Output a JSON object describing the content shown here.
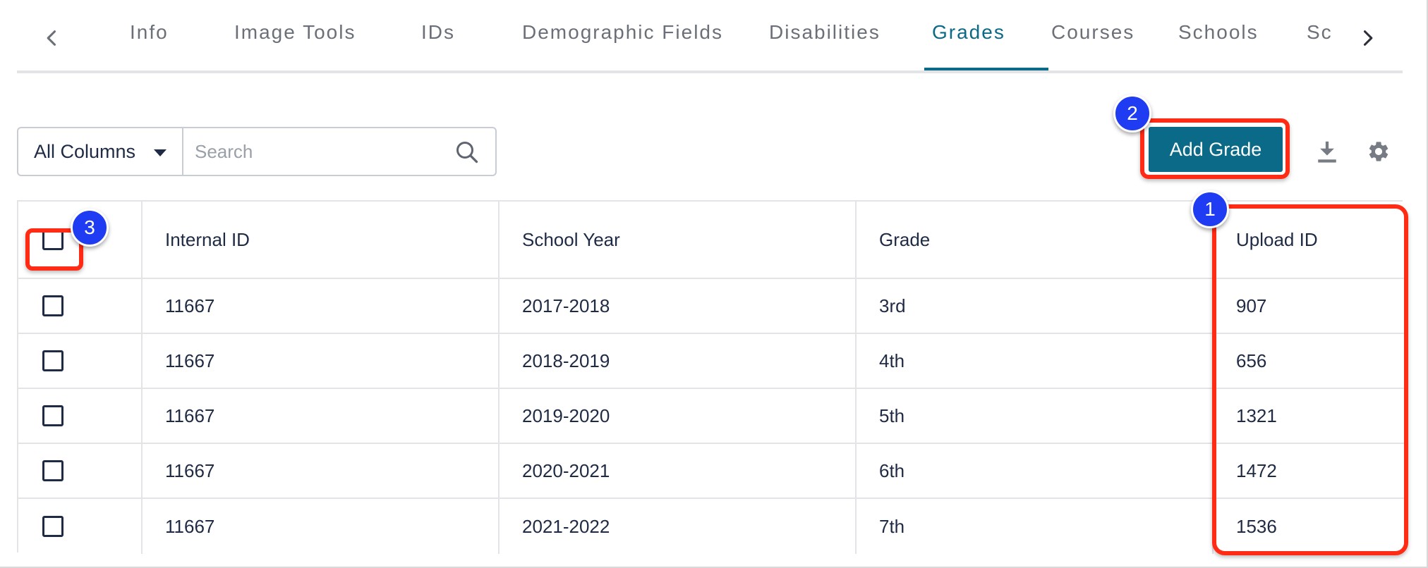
{
  "tabs": [
    {
      "label": "Info"
    },
    {
      "label": "Image Tools"
    },
    {
      "label": "IDs"
    },
    {
      "label": "Demographic Fields"
    },
    {
      "label": "Disabilities"
    },
    {
      "label": "Grades"
    },
    {
      "label": "Courses"
    },
    {
      "label": "Schools"
    },
    {
      "label": "Sc"
    }
  ],
  "active_tab": "Grades",
  "toolbar": {
    "column_select": "All Columns",
    "search_placeholder": "Search",
    "add_button": "Add Grade"
  },
  "table": {
    "headers": [
      "Internal ID",
      "School Year",
      "Grade",
      "Upload ID"
    ],
    "rows": [
      [
        "11667",
        "2017-2018",
        "3rd",
        "907"
      ],
      [
        "11667",
        "2018-2019",
        "4th",
        "656"
      ],
      [
        "11667",
        "2019-2020",
        "5th",
        "1321"
      ],
      [
        "11667",
        "2020-2021",
        "6th",
        "1472"
      ],
      [
        "11667",
        "2021-2022",
        "7th",
        "1536"
      ]
    ]
  },
  "callouts": [
    "1",
    "2",
    "3"
  ],
  "colors": {
    "accent": "#0b6a87",
    "highlight": "#ff2b14",
    "callout": "#1f3cf2"
  },
  "icons": {
    "prev": "chevron-left-icon",
    "next": "chevron-right-icon",
    "search": "search-icon",
    "download": "download-icon",
    "settings": "gear-icon",
    "dropdown": "caret-down-icon"
  }
}
